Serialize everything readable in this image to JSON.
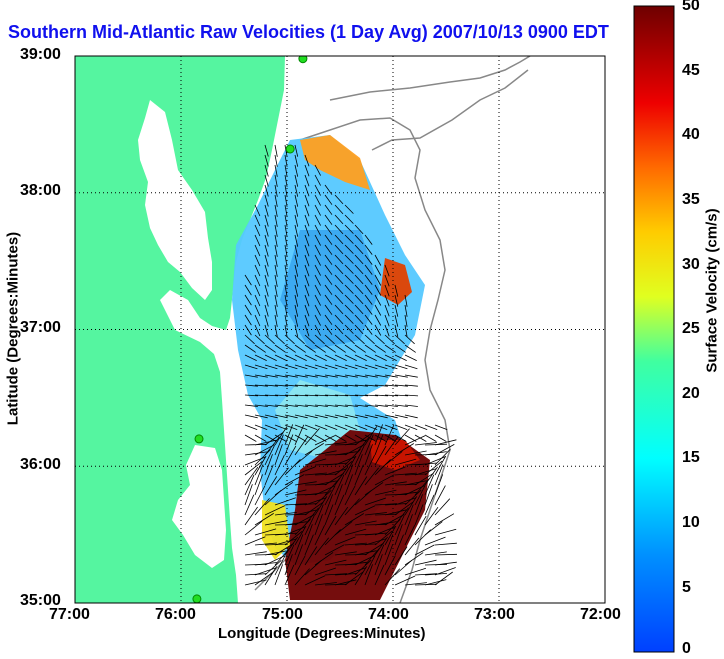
{
  "title": "Southern Mid-Atlantic Raw Velocities (1 Day Avg) 2007/10/13 0900 EDT",
  "axes": {
    "xlabel": "Longitude (Degrees:Minutes)",
    "ylabel": "Latitude (Degrees:Minutes)",
    "xticks": [
      "77:00",
      "76:00",
      "75:00",
      "74:00",
      "73:00",
      "72:00"
    ],
    "yticks": [
      "39:00",
      "38:00",
      "37:00",
      "36:00",
      "35:00"
    ],
    "lon_range": [
      -77,
      -72
    ],
    "lat_range": [
      35,
      39
    ]
  },
  "colorbar": {
    "label": "Surface Velocity (cm/s)",
    "ticks": [
      "50",
      "45",
      "40",
      "35",
      "30",
      "25",
      "20",
      "15",
      "10",
      "5",
      "0"
    ],
    "range": [
      0,
      50
    ]
  },
  "colors": {
    "land": "#55f5a0",
    "title": "#1010ee",
    "contour": "#888888",
    "station": "#22dd22"
  },
  "stations": [
    {
      "lon": -74.85,
      "lat": 38.98
    },
    {
      "lon": -74.97,
      "lat": 38.32
    },
    {
      "lon": -75.83,
      "lat": 36.2
    },
    {
      "lon": -75.85,
      "lat": 35.03
    }
  ]
}
